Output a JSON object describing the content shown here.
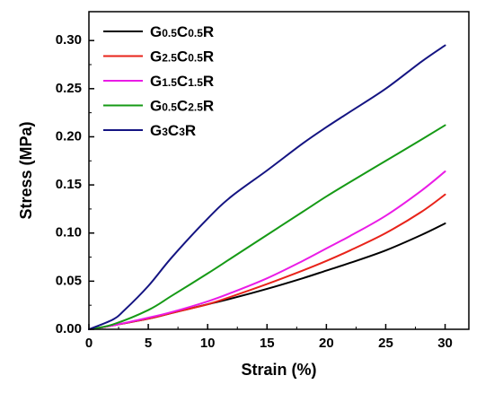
{
  "chart_data": {
    "type": "line",
    "xlabel": "Strain (%)",
    "ylabel": "Stress (MPa)",
    "xlim": [
      0,
      32
    ],
    "ylim": [
      0,
      0.33
    ],
    "xticks": [
      0,
      5,
      10,
      15,
      20,
      25,
      30
    ],
    "yticks": [
      0.0,
      0.05,
      0.1,
      0.15,
      0.2,
      0.25,
      0.3
    ],
    "xtick_labels": [
      "0",
      "5",
      "10",
      "15",
      "20",
      "25",
      "30"
    ],
    "ytick_labels": [
      "0.00",
      "0.05",
      "0.10",
      "0.15",
      "0.20",
      "0.25",
      "0.30"
    ],
    "legend_position": "top-left",
    "grid": false,
    "series": [
      {
        "name": "G0.5C0.5R",
        "label_parts": [
          [
            "G",
            false
          ],
          [
            "0.5",
            true
          ],
          [
            "C",
            false
          ],
          [
            "0.5",
            true
          ],
          [
            "R",
            false
          ]
        ],
        "color": "#000000",
        "x": [
          0,
          2,
          5,
          7,
          10,
          12,
          15,
          18,
          20,
          22,
          25,
          28,
          30
        ],
        "y": [
          0,
          0.004,
          0.011,
          0.017,
          0.026,
          0.032,
          0.042,
          0.053,
          0.061,
          0.069,
          0.082,
          0.098,
          0.11
        ]
      },
      {
        "name": "G2.5C0.5R",
        "label_parts": [
          [
            "G",
            false
          ],
          [
            "2.5",
            true
          ],
          [
            "C",
            false
          ],
          [
            "0.5",
            true
          ],
          [
            "R",
            false
          ]
        ],
        "color": "#e8231a",
        "x": [
          0,
          2,
          5,
          7,
          10,
          12,
          15,
          18,
          20,
          22,
          25,
          28,
          30
        ],
        "y": [
          0,
          0.004,
          0.011,
          0.017,
          0.026,
          0.034,
          0.047,
          0.061,
          0.071,
          0.082,
          0.1,
          0.122,
          0.14
        ]
      },
      {
        "name": "G1.5C1.5R",
        "label_parts": [
          [
            "G",
            false
          ],
          [
            "1.5",
            true
          ],
          [
            "C",
            false
          ],
          [
            "1.5",
            true
          ],
          [
            "R",
            false
          ]
        ],
        "color": "#ea1ce6",
        "x": [
          0,
          2,
          5,
          7,
          10,
          12,
          15,
          18,
          20,
          22,
          25,
          28,
          30
        ],
        "y": [
          0,
          0.004,
          0.012,
          0.018,
          0.029,
          0.038,
          0.053,
          0.071,
          0.084,
          0.097,
          0.118,
          0.144,
          0.164
        ]
      },
      {
        "name": "G0.5C2.5R",
        "label_parts": [
          [
            "G",
            false
          ],
          [
            "0.5",
            true
          ],
          [
            "C",
            false
          ],
          [
            "2.5",
            true
          ],
          [
            "R",
            false
          ]
        ],
        "color": "#169a16",
        "x": [
          0,
          2,
          5,
          7,
          10,
          12,
          15,
          18,
          20,
          22,
          25,
          28,
          30
        ],
        "y": [
          0,
          0.005,
          0.02,
          0.035,
          0.058,
          0.074,
          0.098,
          0.122,
          0.138,
          0.153,
          0.175,
          0.197,
          0.212
        ]
      },
      {
        "name": "G3C3R",
        "label_parts": [
          [
            "G",
            false
          ],
          [
            "3",
            true
          ],
          [
            "C",
            false
          ],
          [
            "3",
            true
          ],
          [
            "R",
            false
          ]
        ],
        "color": "#141482",
        "x": [
          0,
          2,
          3,
          5,
          7,
          10,
          12,
          15,
          18,
          20,
          22,
          25,
          28,
          30
        ],
        "y": [
          0,
          0.01,
          0.02,
          0.045,
          0.075,
          0.115,
          0.138,
          0.165,
          0.193,
          0.21,
          0.226,
          0.25,
          0.278,
          0.295
        ]
      }
    ]
  }
}
